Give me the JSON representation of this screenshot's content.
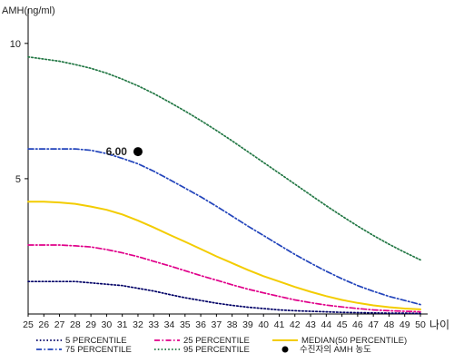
{
  "chart_data": {
    "type": "line",
    "ylabel": "AMH(ng/ml)",
    "xlabel": "나이",
    "xlim": [
      25,
      50
    ],
    "ylim": [
      0,
      11
    ],
    "yticks": [
      5,
      10
    ],
    "x": [
      25,
      26,
      27,
      28,
      29,
      30,
      31,
      32,
      33,
      34,
      35,
      36,
      37,
      38,
      39,
      40,
      41,
      42,
      43,
      44,
      45,
      46,
      47,
      48,
      49,
      50
    ],
    "series": [
      {
        "name": "5 PERCENTILE",
        "color": "#000066",
        "dash": "dotted",
        "values": [
          1.2,
          1.2,
          1.2,
          1.2,
          1.15,
          1.1,
          1.05,
          0.95,
          0.85,
          0.72,
          0.6,
          0.5,
          0.4,
          0.32,
          0.25,
          0.2,
          0.15,
          0.12,
          0.1,
          0.08,
          0.06,
          0.05,
          0.04,
          0.03,
          0.03,
          0.02
        ]
      },
      {
        "name": "25 PERCENTILE",
        "color": "#e0008a",
        "dash": "dashdot",
        "values": [
          2.55,
          2.55,
          2.55,
          2.52,
          2.48,
          2.38,
          2.26,
          2.12,
          1.95,
          1.78,
          1.6,
          1.42,
          1.25,
          1.08,
          0.92,
          0.78,
          0.65,
          0.52,
          0.42,
          0.33,
          0.26,
          0.2,
          0.15,
          0.12,
          0.1,
          0.08
        ]
      },
      {
        "name": "MEDIAN(50 PERCENTILE)",
        "color": "#f3cc00",
        "dash": "solid",
        "values": [
          4.15,
          4.15,
          4.12,
          4.07,
          3.97,
          3.85,
          3.68,
          3.45,
          3.2,
          2.93,
          2.67,
          2.4,
          2.13,
          1.88,
          1.63,
          1.4,
          1.2,
          1.0,
          0.82,
          0.66,
          0.52,
          0.41,
          0.32,
          0.25,
          0.2,
          0.17
        ]
      },
      {
        "name": "75 PERCENTILE",
        "color": "#2244bb",
        "dash": "dashdot",
        "values": [
          6.1,
          6.1,
          6.1,
          6.1,
          6.05,
          5.93,
          5.75,
          5.55,
          5.28,
          4.97,
          4.65,
          4.33,
          3.98,
          3.62,
          3.25,
          2.9,
          2.55,
          2.2,
          1.88,
          1.58,
          1.3,
          1.05,
          0.84,
          0.65,
          0.5,
          0.35
        ]
      },
      {
        "name": "95 PERCENTILE",
        "color": "#227744",
        "dash": "dotted",
        "values": [
          9.5,
          9.42,
          9.34,
          9.22,
          9.08,
          8.9,
          8.68,
          8.43,
          8.15,
          7.83,
          7.5,
          7.15,
          6.78,
          6.4,
          6.0,
          5.6,
          5.2,
          4.8,
          4.4,
          4.0,
          3.62,
          3.25,
          2.9,
          2.58,
          2.28,
          2.0
        ]
      }
    ],
    "marker": {
      "name": "수진자의 AMH 농도",
      "x": 32,
      "y": 6.0,
      "label": "6.00",
      "color": "#000000"
    },
    "legend": {
      "position": "bottom"
    },
    "grid": false
  }
}
